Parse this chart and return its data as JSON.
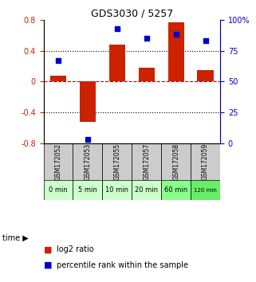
{
  "title": "GDS3030 / 5257",
  "samples": [
    "GSM172052",
    "GSM172053",
    "GSM172055",
    "GSM172057",
    "GSM172058",
    "GSM172059"
  ],
  "time_labels": [
    "0 min",
    "5 min",
    "10 min",
    "20 min",
    "60 min",
    "120 min"
  ],
  "log2_ratio": [
    0.08,
    -0.52,
    0.48,
    0.18,
    0.77,
    0.15
  ],
  "percentile_rank": [
    67,
    3,
    93,
    85,
    88,
    83
  ],
  "ylim_left": [
    -0.8,
    0.8
  ],
  "ylim_right": [
    0,
    100
  ],
  "yticks_left": [
    -0.8,
    -0.4,
    0,
    0.4,
    0.8
  ],
  "yticks_right": [
    0,
    25,
    50,
    75,
    100
  ],
  "bar_color": "#cc2200",
  "dot_color": "#0000cc",
  "zero_line_color": "#cc0000",
  "dot_line_color": "#cc0000",
  "grid_color": "#000000",
  "bg_color": "#ffffff",
  "green_light": "#ccffcc",
  "green_mid": "#99ff99",
  "green_bright": "#66ff66",
  "gray_cell": "#cccccc",
  "time_colors": [
    "#ccffcc",
    "#ccffcc",
    "#ccffcc",
    "#ccffcc",
    "#88ff88",
    "#66ee66"
  ]
}
